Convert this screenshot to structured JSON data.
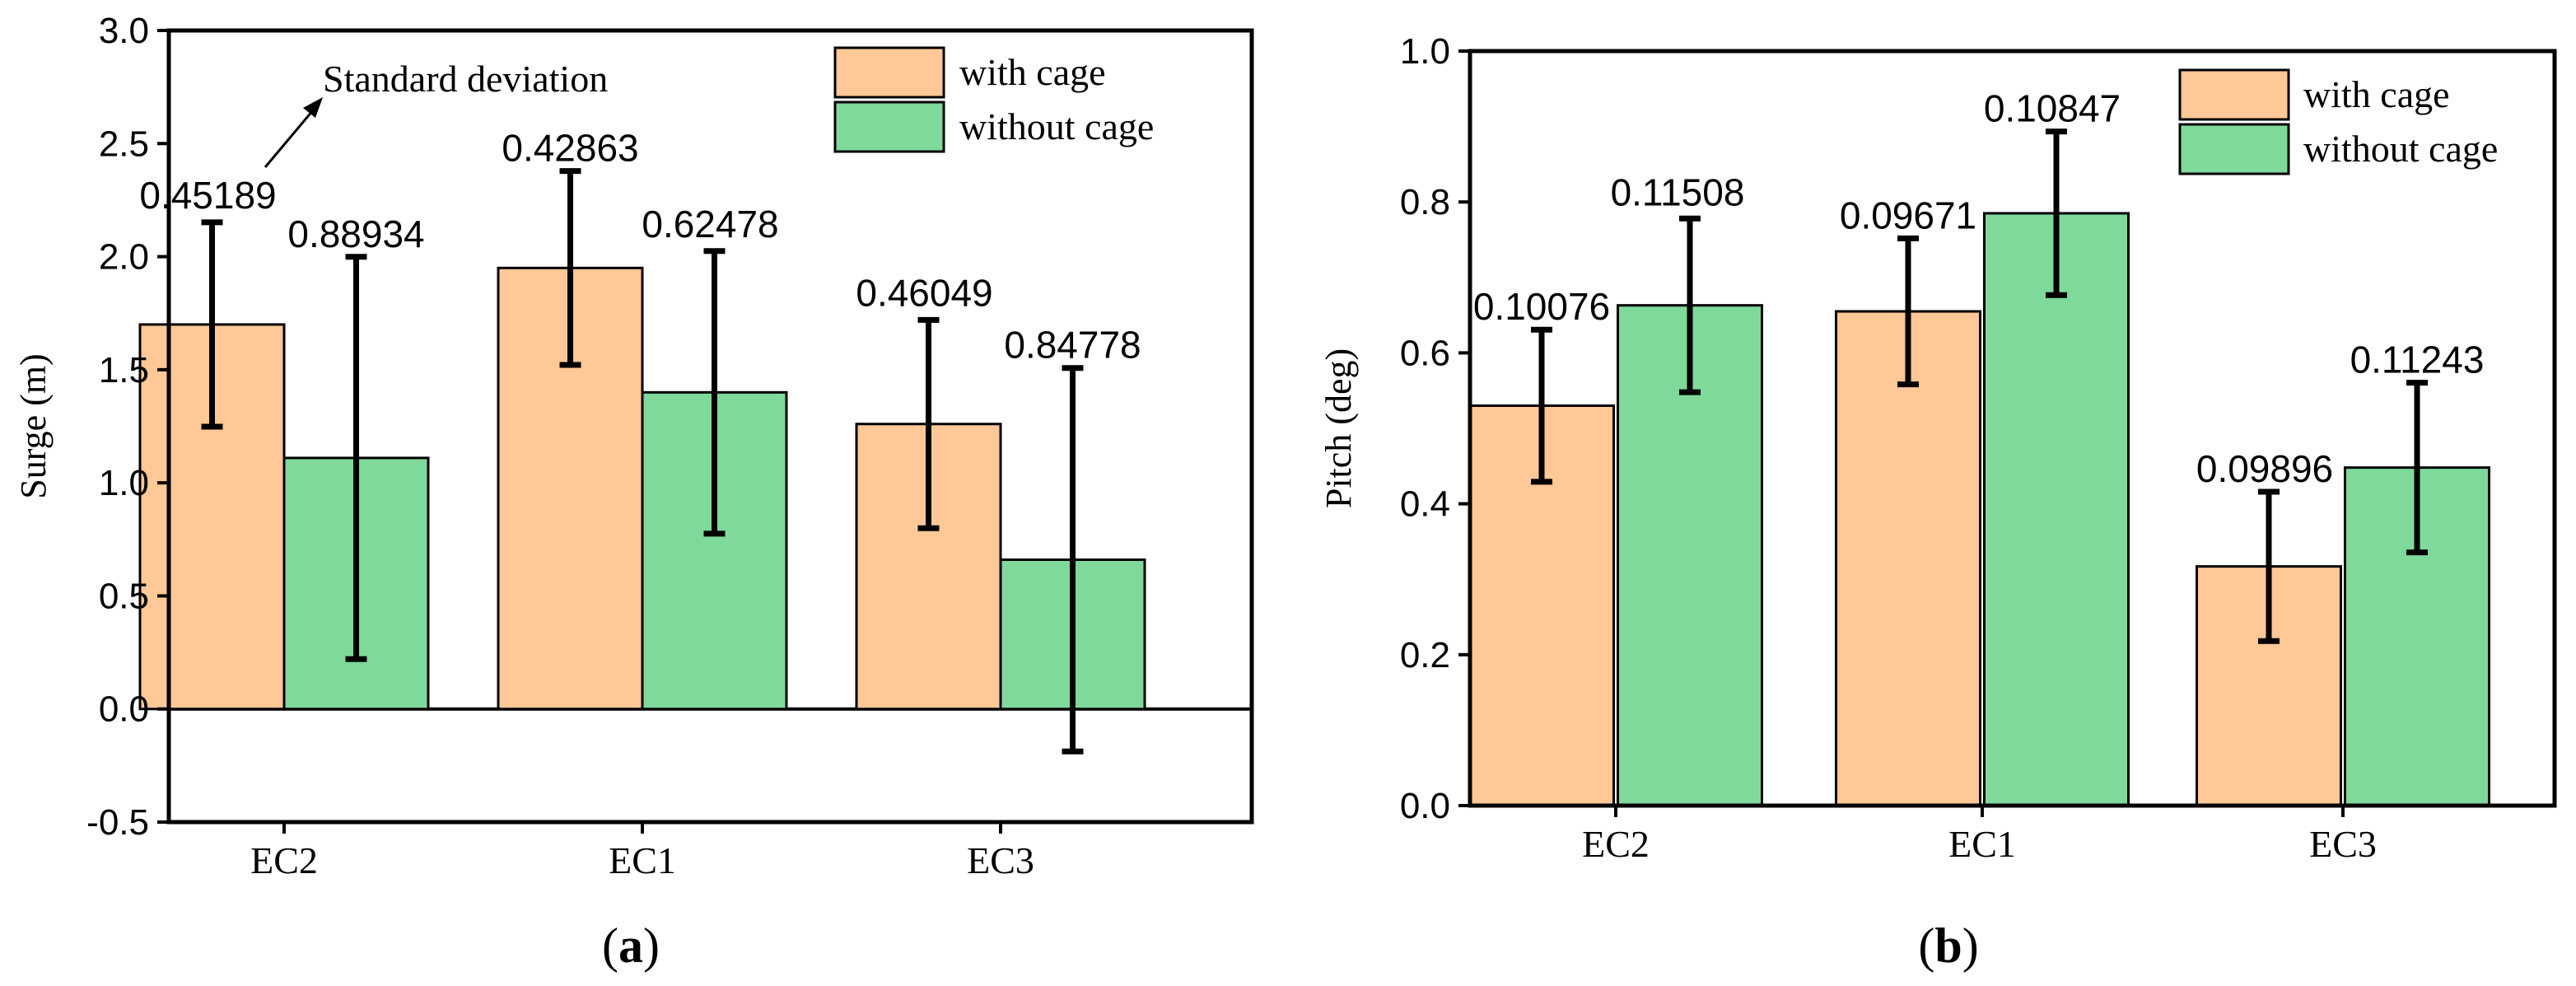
{
  "panels": {
    "a": {
      "label": "(a)",
      "letter": "a"
    },
    "b": {
      "label": "(b)",
      "letter": "b"
    }
  },
  "annotation": {
    "text": "Standard deviation"
  },
  "colors": {
    "with_cage": "#FFC896",
    "without_cage": "#7FD99A",
    "axis": "#000000"
  },
  "chart_data": [
    {
      "type": "bar",
      "title": "",
      "xlabel": "",
      "ylabel": "Surge (m)",
      "ylim": [
        -0.5,
        3.0
      ],
      "yticks": [
        "-0.5",
        "0.0",
        "0.5",
        "1.0",
        "1.5",
        "2.0",
        "2.5",
        "3.0"
      ],
      "categories": [
        "EC2",
        "EC1",
        "EC3"
      ],
      "legend_position": "top-right",
      "zero_line": true,
      "series": [
        {
          "name": "with cage",
          "values": [
            1.7,
            1.95,
            1.26
          ],
          "errors": [
            0.45189,
            0.42863,
            0.46049
          ],
          "labels": [
            "0.45189",
            "0.42863",
            "0.46049"
          ]
        },
        {
          "name": "without cage",
          "values": [
            1.11,
            1.4,
            0.66
          ],
          "errors": [
            0.88934,
            0.62478,
            0.84778
          ],
          "labels": [
            "0.88934",
            "0.62478",
            "0.84778"
          ]
        }
      ]
    },
    {
      "type": "bar",
      "title": "",
      "xlabel": "",
      "ylabel": "Pitch (deg)",
      "ylim": [
        0.0,
        1.0
      ],
      "yticks": [
        "0.0",
        "0.2",
        "0.4",
        "0.6",
        "0.8",
        "1.0"
      ],
      "categories": [
        "EC2",
        "EC1",
        "EC3"
      ],
      "legend_position": "top-right",
      "zero_line": false,
      "series": [
        {
          "name": "with cage",
          "values": [
            0.53,
            0.655,
            0.317
          ],
          "errors": [
            0.10076,
            0.09671,
            0.09896
          ],
          "labels": [
            "0.10076",
            "0.09671",
            "0.09896"
          ]
        },
        {
          "name": "without cage",
          "values": [
            0.663,
            0.785,
            0.448
          ],
          "errors": [
            0.11508,
            0.10847,
            0.11243
          ],
          "labels": [
            "0.11508",
            "0.10847",
            "0.11243"
          ]
        }
      ]
    }
  ]
}
